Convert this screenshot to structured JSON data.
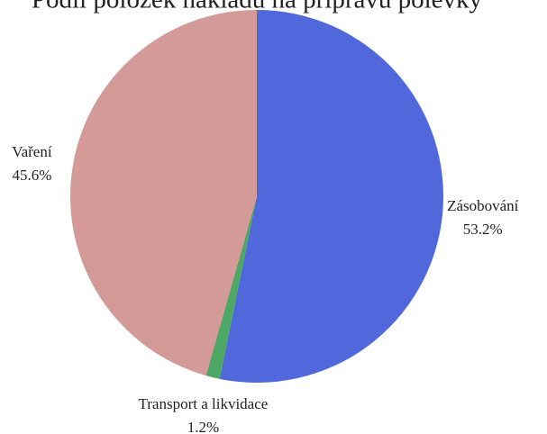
{
  "chart_data": {
    "type": "pie",
    "title": "Podíl položek nákladů na přípravu polévky",
    "categories": [
      "Zásobování",
      "Transport a likvidace",
      "Vaření"
    ],
    "values": [
      53.2,
      1.2,
      45.6
    ],
    "value_labels": [
      "53.2%",
      "1.2%",
      "45.6%"
    ],
    "colors": [
      "#5068dc",
      "#4ea865",
      "#d49a97"
    ]
  }
}
